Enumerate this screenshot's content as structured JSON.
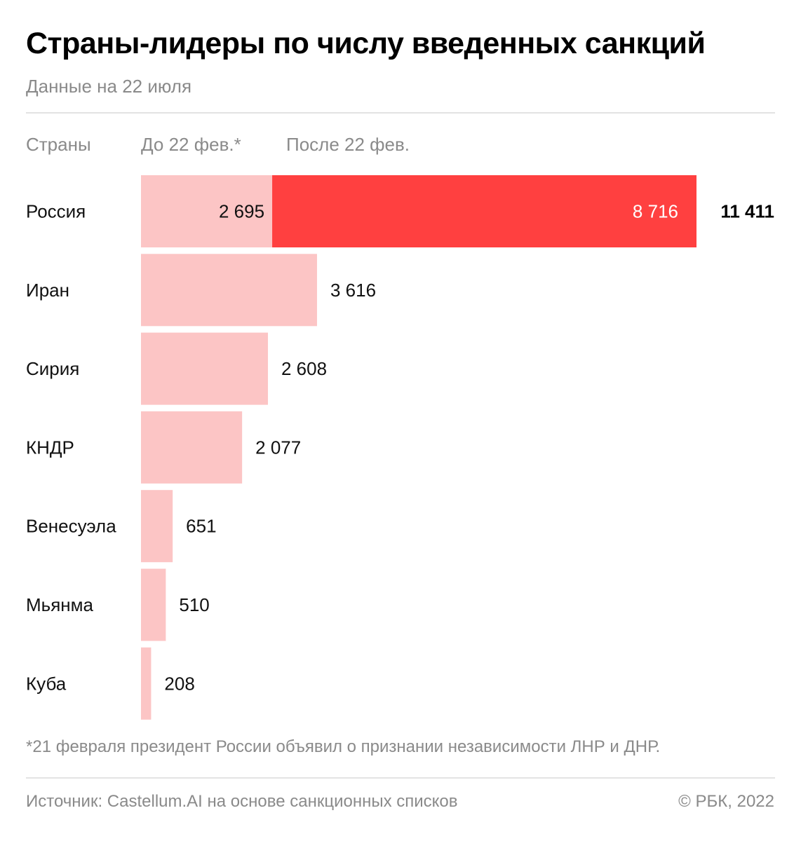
{
  "header": {
    "title": "Страны-лидеры по числу введенных санкций",
    "subtitle": "Данные на 22 июля"
  },
  "columns": {
    "countries": "Страны",
    "before": "До 22 фев.*",
    "after": "После 22 фев."
  },
  "colors": {
    "before": "#fcc5c5",
    "after": "#ff4040",
    "after_label": "#ffffff",
    "label": "#111111",
    "total": "#000000"
  },
  "chart_data": {
    "type": "bar",
    "orientation": "horizontal",
    "stacked": true,
    "categories": [
      "Россия",
      "Иран",
      "Сирия",
      "КНДР",
      "Венесуэла",
      "Мьянма",
      "Куба"
    ],
    "series": [
      {
        "name": "До 22 фев.*",
        "values": [
          2695,
          3616,
          2608,
          2077,
          651,
          510,
          208
        ]
      },
      {
        "name": "После 22 фев.",
        "values": [
          8716,
          0,
          0,
          0,
          0,
          0,
          0
        ]
      }
    ],
    "value_labels": {
      "before": [
        "2 695",
        "3 616",
        "2 608",
        "2 077",
        "651",
        "510",
        "208"
      ],
      "after": [
        "8 716",
        "",
        "",
        "",
        "",
        "",
        ""
      ],
      "total": [
        "11 411",
        "",
        "",
        "",
        "",
        "",
        ""
      ]
    },
    "title": "Страны-лидеры по числу введенных санкций",
    "subtitle": "Данные на 22 июля",
    "xlim": [
      0,
      11411
    ],
    "grid": false
  },
  "footer": {
    "footnote": "*21 февраля президент России объявил о признании независимости ЛНР и ДНР.",
    "source": "Источник: Castellum.AI на основе санкционных списков",
    "copyright": "© РБК, 2022"
  }
}
